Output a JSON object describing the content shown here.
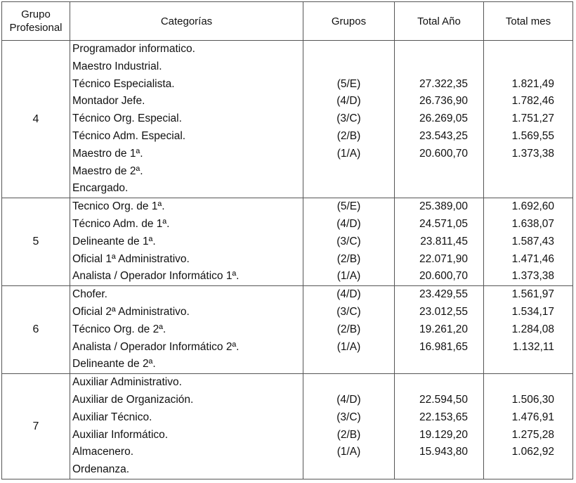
{
  "headers": {
    "grupo_profesional": "Grupo Profesional",
    "categorias": "Categorías",
    "grupos": "Grupos",
    "total_anio": "Total Año",
    "total_mes": "Total mes"
  },
  "blocks": [
    {
      "grupo": "4",
      "lines": [
        {
          "cat": "Programador informatico.",
          "grupo": "",
          "anio": "",
          "mes": ""
        },
        {
          "cat": "Maestro Industrial.",
          "grupo": "",
          "anio": "",
          "mes": ""
        },
        {
          "cat": "Técnico Especialista.",
          "grupo": "(5/E)",
          "anio": "27.322,35",
          "mes": "1.821,49"
        },
        {
          "cat": "Montador Jefe.",
          "grupo": "(4/D)",
          "anio": "26.736,90",
          "mes": "1.782,46"
        },
        {
          "cat": "Técnico Org. Especial.",
          "grupo": "(3/C)",
          "anio": "26.269,05",
          "mes": "1.751,27"
        },
        {
          "cat": "Técnico Adm. Especial.",
          "grupo": "(2/B)",
          "anio": "23.543,25",
          "mes": "1.569,55"
        },
        {
          "cat": "Maestro de 1ª.",
          "grupo": "(1/A)",
          "anio": "20.600,70",
          "mes": "1.373,38"
        },
        {
          "cat": "Maestro de 2ª.",
          "grupo": "",
          "anio": "",
          "mes": ""
        },
        {
          "cat": "Encargado.",
          "grupo": "",
          "anio": "",
          "mes": ""
        }
      ]
    },
    {
      "grupo": "5",
      "lines": [
        {
          "cat": "Tecnico Org. de 1ª.",
          "grupo": "(5/E)",
          "anio": "25.389,00",
          "mes": "1.692,60"
        },
        {
          "cat": "Técnico Adm. de 1ª.",
          "grupo": "(4/D)",
          "anio": "24.571,05",
          "mes": "1.638,07"
        },
        {
          "cat": "Delineante de 1ª.",
          "grupo": "(3/C)",
          "anio": "23.811,45",
          "mes": "1.587,43"
        },
        {
          "cat": "Oficial 1ª Administrativo.",
          "grupo": "(2/B)",
          "anio": "22.071,90",
          "mes": "1.471,46"
        },
        {
          "cat": "Analista / Operador Informático 1ª.",
          "grupo": "(1/A)",
          "anio": "20.600,70",
          "mes": "1.373,38"
        }
      ]
    },
    {
      "grupo": "6",
      "lines": [
        {
          "cat": "Chofer.",
          "grupo": "(4/D)",
          "anio": "23.429,55",
          "mes": "1.561,97"
        },
        {
          "cat": "Oficial 2ª Administrativo.",
          "grupo": "(3/C)",
          "anio": "23.012,55",
          "mes": "1.534,17"
        },
        {
          "cat": "Técnico Org. de 2ª.",
          "grupo": "(2/B)",
          "anio": "19.261,20",
          "mes": "1.284,08"
        },
        {
          "cat": "Analista / Operador Informático 2ª.",
          "grupo": "(1/A)",
          "anio": "16.981,65",
          "mes": "1.132,11"
        },
        {
          "cat": "Delineante de 2ª.",
          "grupo": "",
          "anio": "",
          "mes": ""
        }
      ]
    },
    {
      "grupo": "7",
      "lines": [
        {
          "cat": "Auxiliar Administrativo.",
          "grupo": "",
          "anio": "",
          "mes": ""
        },
        {
          "cat": "Auxiliar de Organización.",
          "grupo": "(4/D)",
          "anio": "22.594,50",
          "mes": "1.506,30"
        },
        {
          "cat": "Auxiliar Técnico.",
          "grupo": "(3/C)",
          "anio": "22.153,65",
          "mes": "1.476,91"
        },
        {
          "cat": "Auxiliar Informático.",
          "grupo": "(2/B)",
          "anio": "19.129,20",
          "mes": "1.275,28"
        },
        {
          "cat": "Almacenero.",
          "grupo": "(1/A)",
          "anio": "15.943,80",
          "mes": "1.062,92"
        },
        {
          "cat": "Ordenanza.",
          "grupo": "",
          "anio": "",
          "mes": ""
        }
      ]
    }
  ]
}
